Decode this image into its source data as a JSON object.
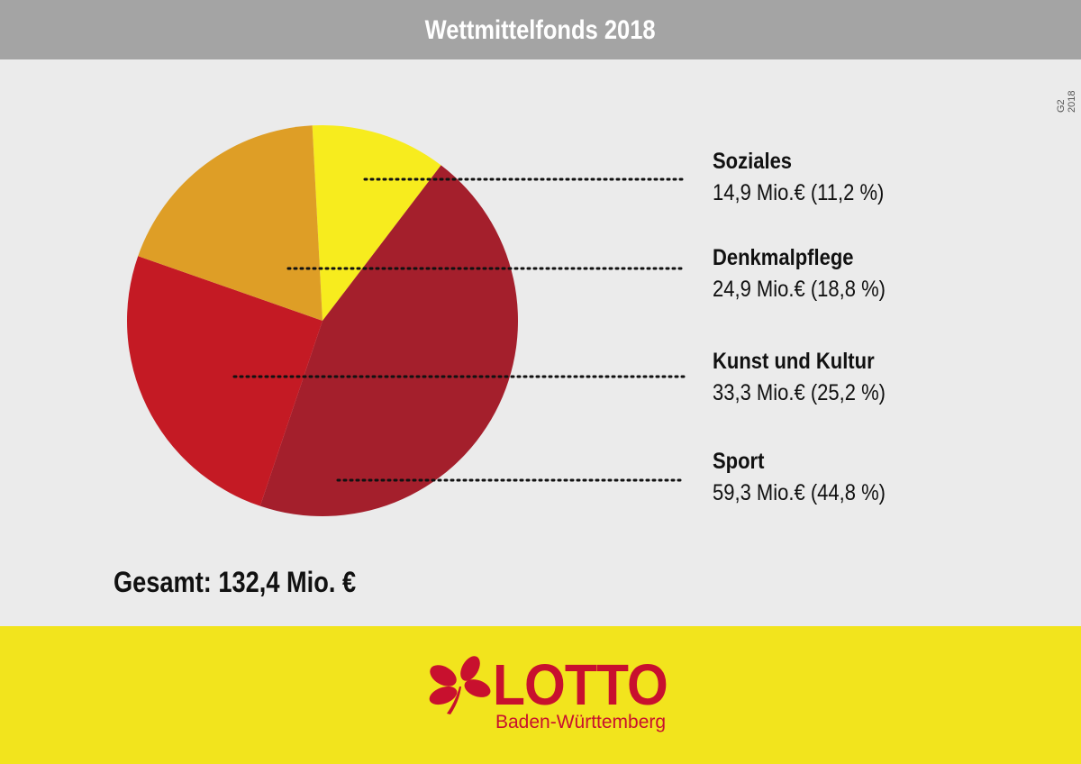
{
  "header": {
    "title": "Wettmittelfonds 2018"
  },
  "code": "G2 2018",
  "chart_data": {
    "type": "pie",
    "title": "Wettmittelfonds 2018",
    "unit": "Mio.€",
    "slices": [
      {
        "name": "Soziales",
        "value": 14.9,
        "percent": 11.2,
        "value_label": "14,9 Mio.€ (11,2 %)",
        "color": "#f7ec1e"
      },
      {
        "name": "Sport",
        "value": 59.3,
        "percent": 44.8,
        "value_label": "59,3 Mio.€ (44,8 %)",
        "color": "#a41f2c"
      },
      {
        "name": "Kunst und Kultur",
        "value": 33.3,
        "percent": 25.2,
        "value_label": "33,3 Mio.€ (25,2 %)",
        "color": "#c41a24"
      },
      {
        "name": "Denkmalpflege",
        "value": 24.9,
        "percent": 18.8,
        "value_label": "24,9 Mio.€ (18,8 %)",
        "color": "#de9e26"
      }
    ],
    "total_label": "Gesamt: 132,4 Mio. €"
  },
  "footer": {
    "logo_text": "LOTTO",
    "logo_sub": "Baden-Württemberg",
    "brand_color": "#c8102e"
  }
}
